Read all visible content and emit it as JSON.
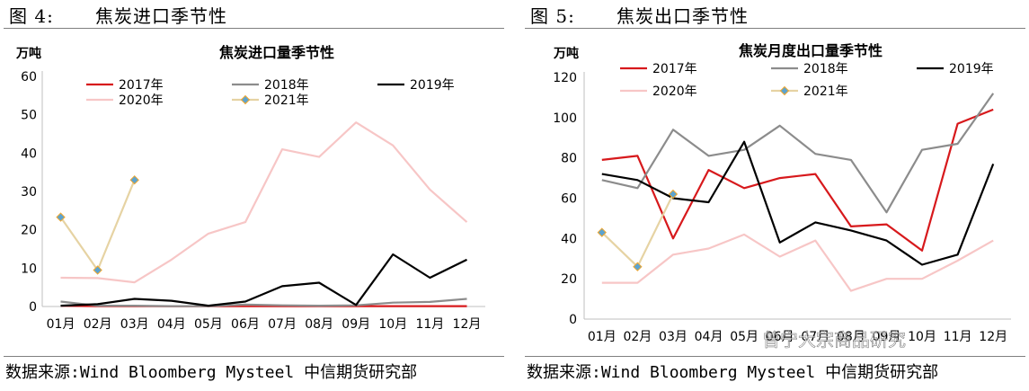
{
  "panels": [
    {
      "figure_label": "图 4:",
      "figure_title": "焦炭进口季节性",
      "source": "数据来源:Wind Bloomberg Mysteel 中信期货研究部",
      "chart_data": {
        "type": "line",
        "title": "焦炭进口量季节性",
        "unit_label": "万吨",
        "categories": [
          "01月",
          "02月",
          "03月",
          "04月",
          "05月",
          "06月",
          "07月",
          "08月",
          "09月",
          "10月",
          "11月",
          "12月"
        ],
        "ylim": [
          0,
          60
        ],
        "yticks": [
          0,
          10,
          20,
          30,
          40,
          50,
          60
        ],
        "grid": false,
        "legend_position": "top",
        "series": [
          {
            "name": "2017年",
            "color": "#d7191c",
            "marker": false,
            "values": [
              0.2,
              0.1,
              0.1,
              0.1,
              0.1,
              0.1,
              0.1,
              0.1,
              0.1,
              0.1,
              0.1,
              0.1
            ]
          },
          {
            "name": "2018年",
            "color": "#8c8c8c",
            "marker": false,
            "values": [
              1.3,
              0.2,
              0.2,
              0.1,
              0.1,
              0.5,
              0.3,
              0.2,
              0.3,
              1.0,
              1.2,
              2.0
            ]
          },
          {
            "name": "2019年",
            "color": "#000000",
            "marker": false,
            "values": [
              0.2,
              0.6,
              2.0,
              1.5,
              0.2,
              1.3,
              5.3,
              6.2,
              0.4,
              13.6,
              7.5,
              12.2
            ]
          },
          {
            "name": "2020年",
            "color": "#f7c6c6",
            "marker": false,
            "values": [
              7.5,
              7.4,
              6.3,
              12.2,
              19.0,
              22.0,
              41.0,
              39.0,
              48.0,
              42.0,
              30.5,
              22.0
            ]
          },
          {
            "name": "2021年",
            "color": "#e6d3a3",
            "marker": true,
            "marker_color": "#5ba3d0",
            "values": [
              23.3,
              9.5,
              33.0,
              null,
              null,
              null,
              null,
              null,
              null,
              null,
              null,
              null
            ]
          }
        ]
      }
    },
    {
      "figure_label": "图 5:",
      "figure_title": "焦炭出口季节性",
      "source": "数据来源:Wind Bloomberg Mysteel 中信期货研究部",
      "chart_data": {
        "type": "line",
        "title": "焦炭月度出口量季节性",
        "unit_label": "万吨",
        "categories": [
          "01月",
          "02月",
          "03月",
          "04月",
          "05月",
          "06月",
          "07月",
          "08月",
          "09月",
          "10月",
          "11月",
          "12月"
        ],
        "ylim": [
          0,
          120
        ],
        "yticks": [
          0,
          20,
          40,
          60,
          80,
          100,
          120
        ],
        "grid": false,
        "legend_position": "top",
        "series": [
          {
            "name": "2017年",
            "color": "#d7191c",
            "marker": false,
            "values": [
              79,
              81,
              40,
              74,
              65,
              70,
              72,
              46,
              47,
              34,
              97,
              104
            ]
          },
          {
            "name": "2018年",
            "color": "#8c8c8c",
            "marker": false,
            "values": [
              69,
              65,
              94,
              81,
              84,
              96,
              82,
              79,
              53,
              84,
              87,
              112
            ]
          },
          {
            "name": "2019年",
            "color": "#000000",
            "marker": false,
            "values": [
              72,
              69,
              60,
              58,
              88,
              38,
              48,
              44,
              39,
              27,
              32,
              77
            ]
          },
          {
            "name": "2020年",
            "color": "#f7c6c6",
            "marker": false,
            "values": [
              18,
              18,
              32,
              35,
              42,
              31,
              39,
              14,
              20,
              20,
              29,
              39
            ]
          },
          {
            "name": "2021年",
            "color": "#e6d3a3",
            "marker": true,
            "marker_color": "#5ba3d0",
            "values": [
              43,
              26,
              62,
              null,
              null,
              null,
              null,
              null,
              null,
              null,
              null,
              null
            ]
          }
        ]
      }
    }
  ],
  "watermark": "曾宁大宗商品研究"
}
